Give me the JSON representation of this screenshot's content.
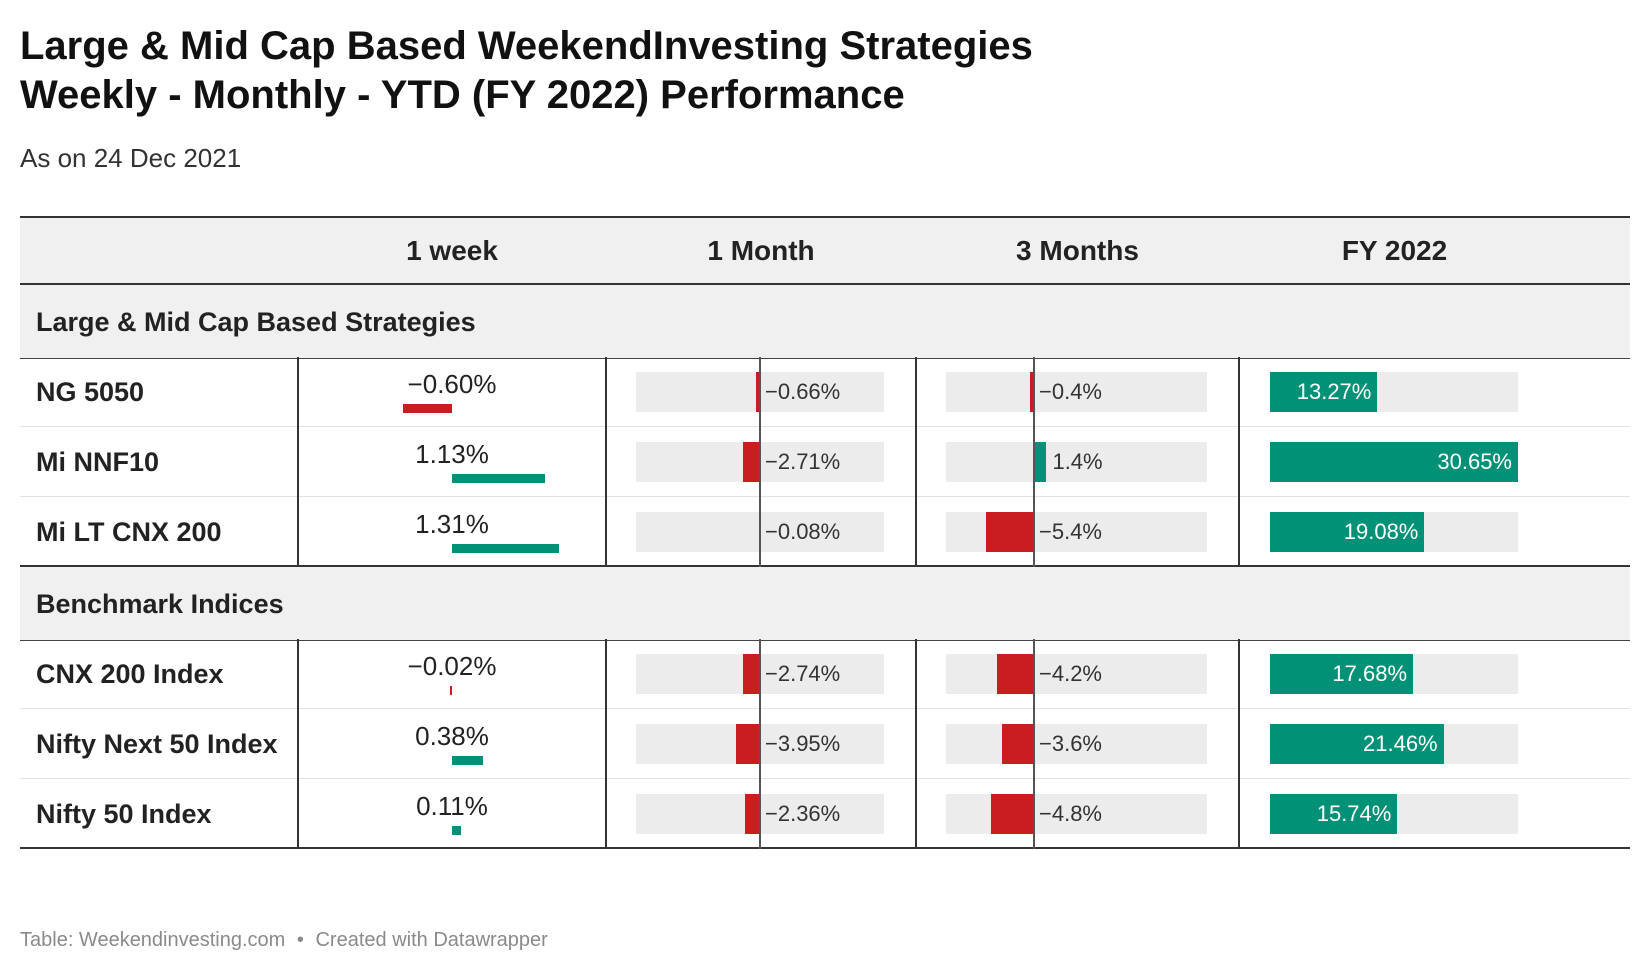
{
  "title_line1": "Large & Mid Cap Based WeekendInvesting Strategies",
  "title_line2": "Weekly - Monthly - YTD (FY 2022) Performance",
  "subtitle": "As on 24 Dec 2021",
  "footer": {
    "source": "Table: Weekendinvesting.com",
    "separator": "•",
    "credit": "Created with Datawrapper"
  },
  "colors": {
    "negative": "#c91d20",
    "positive": "#009176",
    "track": "#ececec"
  },
  "chart_data": {
    "type": "table",
    "columns": [
      "",
      "1 week",
      "1 Month",
      "3 Months",
      "FY 2022"
    ],
    "groups": [
      {
        "name": "Large & Mid Cap Based Strategies",
        "rows": [
          {
            "name": "NG 5050",
            "week": -0.6,
            "week_label": "−0.60%",
            "month": -0.66,
            "month_label": "−0.66%",
            "three_months": -0.4,
            "three_months_label": "−0.4%",
            "fy": 13.27,
            "fy_label": "13.27%"
          },
          {
            "name": "Mi NNF10",
            "week": 1.13,
            "week_label": "1.13%",
            "month": -2.71,
            "month_label": "−2.71%",
            "three_months": 1.4,
            "three_months_label": "1.4%",
            "fy": 30.65,
            "fy_label": "30.65%"
          },
          {
            "name": "Mi LT CNX 200",
            "week": 1.31,
            "week_label": "1.31%",
            "month": -0.08,
            "month_label": "−0.08%",
            "three_months": -5.4,
            "three_months_label": "−5.4%",
            "fy": 19.08,
            "fy_label": "19.08%"
          }
        ]
      },
      {
        "name": "Benchmark Indices",
        "rows": [
          {
            "name": "CNX 200 Index",
            "week": -0.02,
            "week_label": "−0.02%",
            "month": -2.74,
            "month_label": "−2.74%",
            "three_months": -4.2,
            "three_months_label": "−4.2%",
            "fy": 17.68,
            "fy_label": "17.68%"
          },
          {
            "name": "Nifty Next 50 Index",
            "week": 0.38,
            "week_label": "0.38%",
            "month": -3.95,
            "month_label": "−3.95%",
            "three_months": -3.6,
            "three_months_label": "−3.6%",
            "fy": 21.46,
            "fy_label": "21.46%"
          },
          {
            "name": "Nifty 50 Index",
            "week": 0.11,
            "week_label": "0.11%",
            "month": -2.36,
            "month_label": "−2.36%",
            "three_months": -4.8,
            "three_months_label": "−4.8%",
            "fy": 15.74,
            "fy_label": "15.74%"
          }
        ]
      }
    ]
  }
}
